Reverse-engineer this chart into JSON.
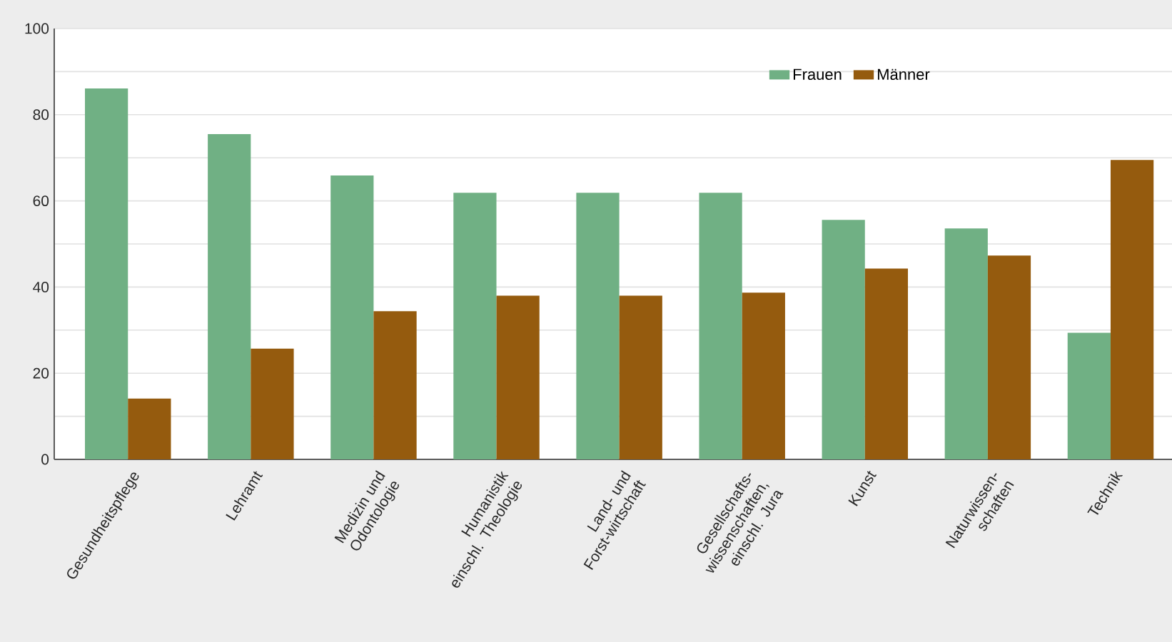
{
  "chart_data": {
    "type": "bar",
    "categories": [
      "Gesundheitspflege",
      "Lehramt",
      "Medizin und Odontologie",
      "Humanistik einschl. Theologie",
      "Land- und Forst-wirtschaft",
      "Gesellschafts-wissenschaften, einschl. Jura",
      "Kunst",
      "Naturwissen-schaften",
      "Technik"
    ],
    "series": [
      {
        "name": "Frauen",
        "color": "#70b084",
        "values": [
          86.1,
          75.5,
          65.9,
          61.9,
          61.9,
          61.9,
          55.6,
          53.6,
          29.4
        ]
      },
      {
        "name": "Männer",
        "color": "#955b0e",
        "values": [
          14.1,
          25.7,
          34.4,
          38.0,
          38.0,
          38.7,
          44.3,
          47.3,
          69.5
        ]
      }
    ],
    "ylim": [
      0,
      100
    ],
    "yticks": [
      0,
      {
        "value": 10,
        "label": null
      },
      20,
      {
        "value": 30,
        "label": null
      },
      40,
      {
        "value": 50,
        "label": null
      },
      60,
      {
        "value": 70,
        "label": null
      },
      80,
      {
        "value": 90,
        "label": null
      },
      100
    ],
    "grid": "y",
    "legend": "top right"
  }
}
